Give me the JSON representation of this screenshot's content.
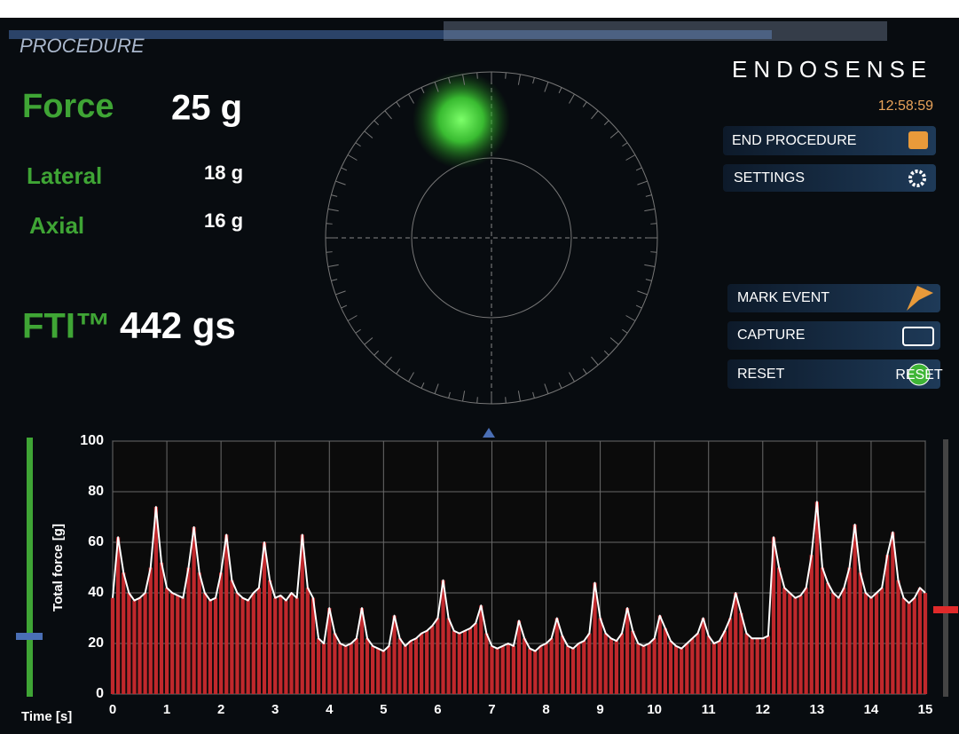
{
  "header": {
    "title": "PROCEDURE",
    "brand": "ENDOSENSE",
    "clock": "12:58:59"
  },
  "readouts": [
    {
      "label": "Force",
      "value": "25 g"
    },
    {
      "label": "Lateral",
      "value": "18 g"
    },
    {
      "label": "Axial",
      "value": "16 g"
    },
    {
      "label": "FTI™",
      "value": "442 gs"
    }
  ],
  "buttons": [
    "END PROCEDURE",
    "SETTINGS",
    "MARK EVENT",
    "CAPTURE",
    "RESET"
  ],
  "reset_icon": "RESET",
  "chart_data": {
    "type": "line",
    "xlabel": "Time [s]",
    "ylabel": "Total force [g]",
    "x": [
      0,
      0.1,
      0.2,
      0.3,
      0.4,
      0.5,
      0.6,
      0.7,
      0.8,
      0.9,
      1,
      1.1,
      1.2,
      1.3,
      1.4,
      1.5,
      1.6,
      1.7,
      1.8,
      1.9,
      2,
      2.1,
      2.2,
      2.3,
      2.4,
      2.5,
      2.6,
      2.7,
      2.8,
      2.9,
      3,
      3.1,
      3.2,
      3.3,
      3.4,
      3.5,
      3.6,
      3.7,
      3.8,
      3.9,
      4,
      4.1,
      4.2,
      4.3,
      4.4,
      4.5,
      4.6,
      4.7,
      4.8,
      4.9,
      5,
      5.1,
      5.2,
      5.3,
      5.4,
      5.5,
      5.6,
      5.7,
      5.8,
      5.9,
      6,
      6.1,
      6.2,
      6.3,
      6.4,
      6.5,
      6.6,
      6.7,
      6.8,
      6.9,
      7,
      7.1,
      7.2,
      7.3,
      7.4,
      7.5,
      7.6,
      7.7,
      7.8,
      7.9,
      8,
      8.1,
      8.2,
      8.3,
      8.4,
      8.5,
      8.6,
      8.7,
      8.8,
      8.9,
      9,
      9.1,
      9.2,
      9.3,
      9.4,
      9.5,
      9.6,
      9.7,
      9.8,
      9.9,
      10,
      10.1,
      10.2,
      10.3,
      10.4,
      10.5,
      10.6,
      10.7,
      10.8,
      10.9,
      11,
      11.1,
      11.2,
      11.3,
      11.4,
      11.5,
      11.6,
      11.7,
      11.8,
      11.9,
      12,
      12.1,
      12.2,
      12.3,
      12.4,
      12.5,
      12.6,
      12.7,
      12.8,
      12.9,
      13,
      13.1,
      13.2,
      13.3,
      13.4,
      13.5,
      13.6,
      13.7,
      13.8,
      13.9,
      14,
      14.1,
      14.2,
      14.3,
      14.4,
      14.5,
      14.6,
      14.7,
      14.8,
      14.9,
      15
    ],
    "series": [
      {
        "name": "Total force",
        "color": "#ffffff",
        "bar_color": "#c0282c",
        "values": [
          38,
          62,
          48,
          40,
          37,
          38,
          40,
          50,
          74,
          52,
          42,
          40,
          39,
          38,
          50,
          66,
          48,
          40,
          37,
          38,
          48,
          63,
          45,
          40,
          38,
          37,
          40,
          42,
          60,
          45,
          38,
          39,
          37,
          40,
          38,
          63,
          42,
          38,
          22,
          20,
          34,
          24,
          20,
          19,
          20,
          22,
          34,
          22,
          19,
          18,
          17,
          19,
          31,
          22,
          19,
          21,
          22,
          24,
          25,
          27,
          30,
          45,
          30,
          25,
          24,
          25,
          26,
          28,
          35,
          24,
          19,
          18,
          19,
          20,
          19,
          29,
          22,
          18,
          17,
          19,
          20,
          22,
          30,
          23,
          19,
          18,
          20,
          21,
          24,
          44,
          30,
          24,
          22,
          21,
          24,
          34,
          25,
          20,
          19,
          20,
          22,
          31,
          26,
          21,
          19,
          18,
          20,
          22,
          24,
          30,
          23,
          20,
          21,
          25,
          30,
          40,
          32,
          24,
          22,
          22,
          22,
          23,
          62,
          50,
          42,
          40,
          38,
          39,
          42,
          55,
          76,
          50,
          44,
          40,
          38,
          42,
          50,
          67,
          48,
          40,
          38,
          40,
          42,
          55,
          64,
          45,
          38,
          36,
          38,
          42,
          40
        ]
      }
    ],
    "xlim": [
      0,
      15
    ],
    "ylim": [
      0,
      100
    ],
    "xticks": [
      0,
      1,
      2,
      3,
      4,
      5,
      6,
      7,
      8,
      9,
      10,
      11,
      12,
      13,
      14,
      15
    ],
    "yticks": [
      0,
      20,
      40,
      60,
      80,
      100
    ],
    "grid": true
  }
}
